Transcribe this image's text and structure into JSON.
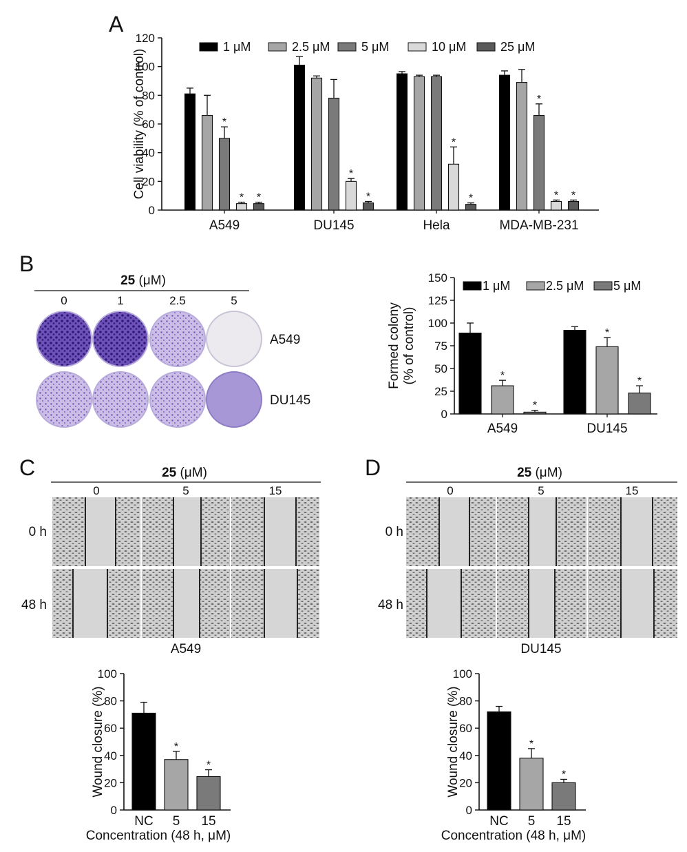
{
  "panel_letters": {
    "a": "A",
    "b": "B",
    "c": "C",
    "d": "D"
  },
  "compound": {
    "name": "25",
    "unit": " (μM)"
  },
  "panel_b": {
    "conc": [
      "0",
      "1",
      "2.5",
      "5"
    ],
    "rows": [
      "A549",
      "DU145"
    ]
  },
  "panel_c": {
    "conc": [
      "0",
      "5",
      "15"
    ],
    "times": [
      "0 h",
      "48 h"
    ],
    "cell": "A549"
  },
  "panel_d": {
    "conc": [
      "0",
      "5",
      "15"
    ],
    "times": [
      "0 h",
      "48 h"
    ],
    "cell": "DU145"
  },
  "colors": {
    "c1": "#000000",
    "c2": "#a6a6a6",
    "c3": "#7a7a7a",
    "c4": "#d9d9d9",
    "c5": "#5a5a5a",
    "stain_dark": "#4a2a9c",
    "stain_light": "#8b6fc9",
    "plate_bg": "#e9e6f2",
    "micro_bg": "#c9c9c9"
  },
  "chart_data": [
    {
      "id": "A",
      "type": "bar",
      "title": "",
      "xlabel": "",
      "ylabel": "Cell viability (% of control)",
      "ylim": [
        0,
        120
      ],
      "yticks": [
        "0",
        "20",
        "40",
        "60",
        "80",
        "100",
        "120"
      ],
      "categories": [
        "A549",
        "DU145",
        "Hela",
        "MDA-MB-231"
      ],
      "series": [
        {
          "name": "1 μM",
          "values": [
            81,
            101,
            95,
            94
          ],
          "errors": [
            4,
            6,
            1.5,
            3
          ],
          "sig": [
            false,
            false,
            false,
            false
          ]
        },
        {
          "name": "2.5 μM",
          "values": [
            66,
            92,
            93,
            89
          ],
          "errors": [
            14,
            1.5,
            1,
            9
          ],
          "sig": [
            false,
            false,
            false,
            false
          ]
        },
        {
          "name": "5 μM",
          "values": [
            50,
            78,
            93,
            66
          ],
          "errors": [
            8,
            13,
            1,
            8
          ],
          "sig": [
            true,
            false,
            false,
            true
          ]
        },
        {
          "name": "10 μM",
          "values": [
            4.5,
            20,
            32,
            6
          ],
          "errors": [
            1,
            2,
            12,
            1
          ],
          "sig": [
            true,
            true,
            true,
            true
          ]
        },
        {
          "name": "25 μM",
          "values": [
            4.5,
            5,
            4,
            6
          ],
          "errors": [
            1,
            1,
            1,
            1
          ],
          "sig": [
            true,
            true,
            true,
            true
          ]
        }
      ],
      "legend": "top"
    },
    {
      "id": "B",
      "type": "bar",
      "title": "",
      "xlabel": "",
      "ylabel": "Formed colony",
      "ylabel2": "(% of control)",
      "ylim": [
        0,
        150
      ],
      "yticks": [
        "0",
        "25",
        "50",
        "75",
        "100",
        "125",
        "150"
      ],
      "categories": [
        "A549",
        "DU145"
      ],
      "series": [
        {
          "name": "1 μM",
          "values": [
            89,
            92
          ],
          "errors": [
            11,
            4
          ],
          "sig": [
            false,
            false
          ]
        },
        {
          "name": "2.5 μM",
          "values": [
            31,
            74
          ],
          "errors": [
            6,
            10
          ],
          "sig": [
            true,
            true
          ]
        },
        {
          "name": "5 μM",
          "values": [
            2,
            23
          ],
          "errors": [
            2,
            8
          ],
          "sig": [
            true,
            true
          ]
        }
      ],
      "legend": "top"
    },
    {
      "id": "C",
      "type": "bar",
      "title": "",
      "xlabel": "Concentration (48 h, μM)",
      "ylabel": "Wound closure (%)",
      "ylim": [
        0,
        100
      ],
      "yticks": [
        "0",
        "20",
        "40",
        "60",
        "80",
        "100"
      ],
      "categories": [
        "NC",
        "5",
        "15"
      ],
      "values": [
        71,
        37,
        24.5
      ],
      "errors": [
        8,
        6,
        5
      ],
      "sig": [
        false,
        true,
        true
      ]
    },
    {
      "id": "D",
      "type": "bar",
      "title": "",
      "xlabel": "Concentration (48 h, μM)",
      "ylabel": "Wound closure (%)",
      "ylim": [
        0,
        100
      ],
      "yticks": [
        "0",
        "20",
        "40",
        "60",
        "80",
        "100"
      ],
      "categories": [
        "NC",
        "5",
        "15"
      ],
      "values": [
        72,
        38,
        20
      ],
      "errors": [
        4,
        7,
        2.5
      ],
      "sig": [
        false,
        true,
        true
      ]
    }
  ]
}
